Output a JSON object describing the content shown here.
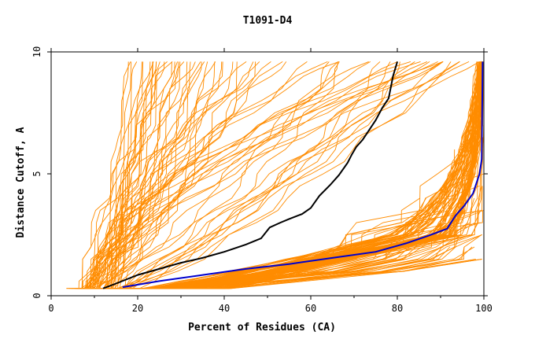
{
  "chart_data": {
    "type": "line",
    "title": "T1091-D4",
    "xlabel": "Percent of Residues (CA)",
    "ylabel": "Distance Cutoff, A",
    "xlim": [
      0,
      100
    ],
    "ylim": [
      0,
      10
    ],
    "x_ticks": [
      "0",
      "20",
      "40",
      "60",
      "80",
      "100"
    ],
    "y_ticks": [
      "0",
      "5",
      "10"
    ],
    "grid": false,
    "legend": "none",
    "colors": {
      "background_curves": "#ff8c00",
      "black_curve": "#000000",
      "blue_curve": "#0000cd",
      "axis": "#000000"
    },
    "series": [
      {
        "color": "black",
        "x": [
          12.0,
          15.0,
          20.0,
          25.0,
          30.0,
          35.0,
          40.0,
          45.0,
          48.5,
          50.5,
          53.0,
          55.0,
          58.0,
          60.0,
          62.0,
          64.5,
          66.5,
          68.5,
          69.5,
          70.5,
          72.0,
          73.5,
          75.0,
          76.5,
          78.0,
          79.0,
          80.0
        ],
        "y": [
          0.3,
          0.5,
          0.85,
          1.1,
          1.35,
          1.55,
          1.8,
          2.1,
          2.35,
          2.8,
          3.0,
          3.15,
          3.35,
          3.6,
          4.1,
          4.55,
          4.95,
          5.45,
          5.8,
          6.1,
          6.4,
          6.8,
          7.2,
          7.7,
          8.1,
          9.0,
          9.6
        ]
      },
      {
        "color": "blue",
        "x": [
          16.5,
          25.0,
          35.0,
          45.0,
          55.0,
          65.0,
          75.0,
          82.0,
          87.0,
          91.5,
          93.5,
          95.5,
          97.5,
          99.0,
          99.5,
          99.6,
          99.7
        ],
        "y": [
          0.35,
          0.6,
          0.85,
          1.1,
          1.3,
          1.55,
          1.8,
          2.15,
          2.45,
          2.75,
          3.3,
          3.7,
          4.2,
          5.0,
          5.6,
          7.5,
          9.6
        ]
      }
    ]
  }
}
